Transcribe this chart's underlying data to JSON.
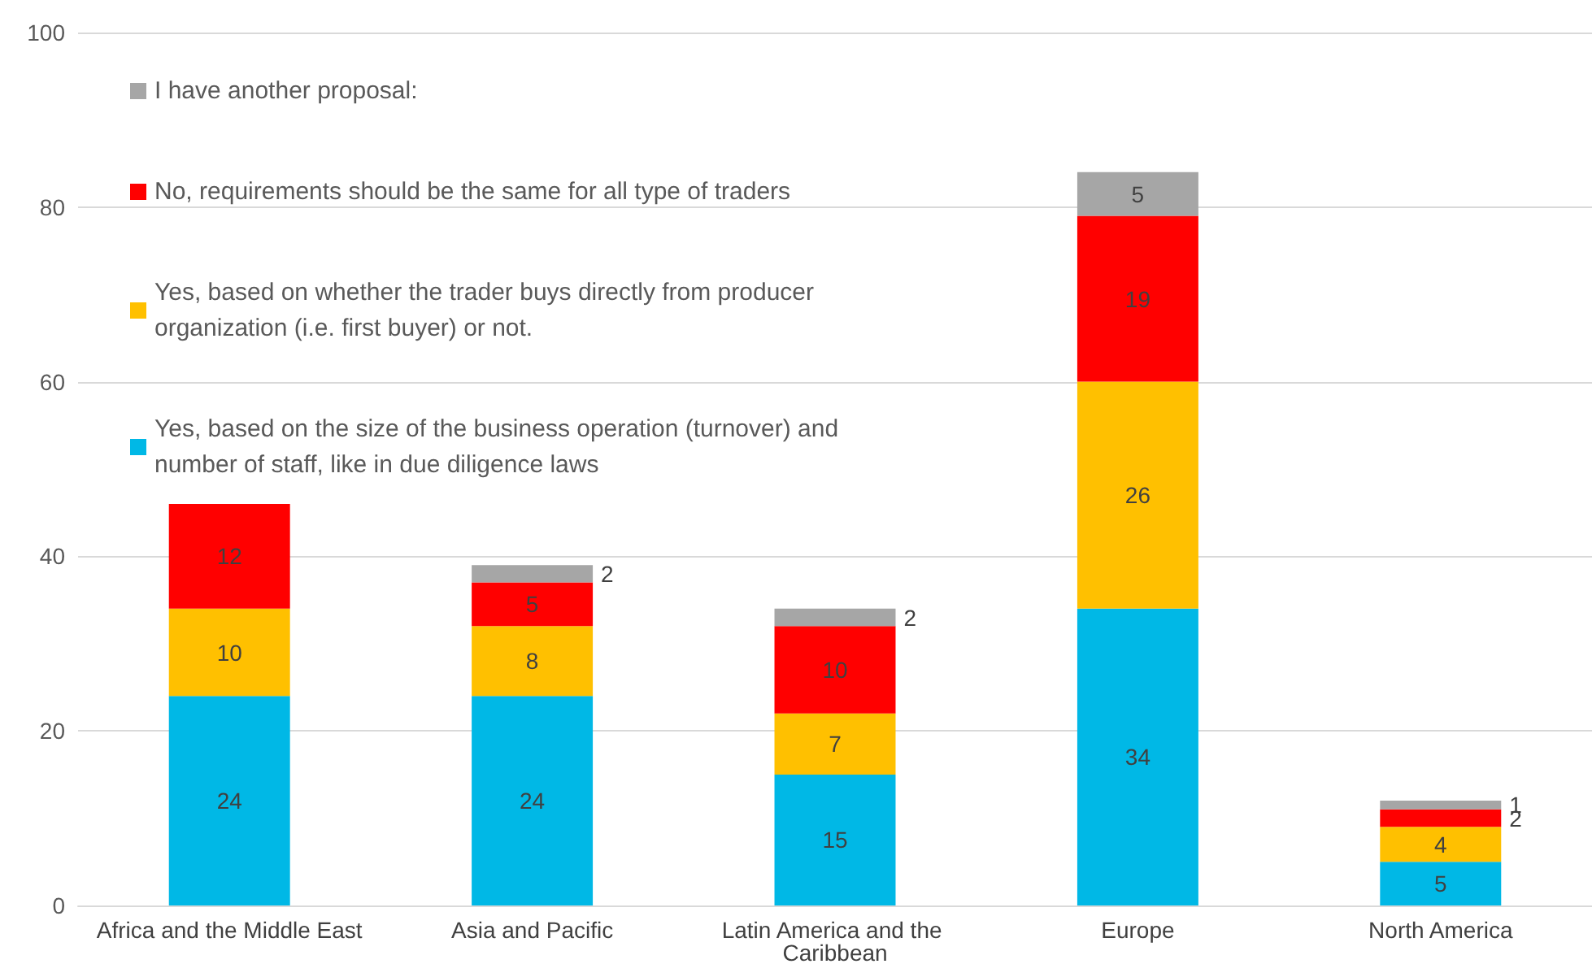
{
  "chart_data": {
    "type": "bar",
    "stacked": true,
    "categories": [
      "Africa and the Middle East",
      "Asia and Pacific",
      "Latin America and the Caribbean",
      "Europe",
      "North America"
    ],
    "series": [
      {
        "name": "Yes, based on the size of the business operation (turnover) and number of staff, like in due diligence laws",
        "color": "#00b8e6",
        "values": [
          24,
          24,
          15,
          34,
          5
        ]
      },
      {
        "name": "Yes, based on whether the trader buys directly from producer organization (i.e. first buyer) or not.",
        "color": "#ffc000",
        "values": [
          10,
          8,
          7,
          26,
          4
        ]
      },
      {
        "name": "No, requirements should be the same for all type of traders",
        "color": "#ff0000",
        "values": [
          12,
          5,
          10,
          19,
          2
        ]
      },
      {
        "name": "I have another proposal:",
        "color": "#a6a6a6",
        "values": [
          null,
          2,
          2,
          5,
          1
        ]
      }
    ],
    "ylim": [
      0,
      100
    ],
    "yticks": [
      0,
      20,
      40,
      60,
      80,
      100
    ],
    "grid": "y",
    "legend": "top left",
    "data_labels": true
  }
}
